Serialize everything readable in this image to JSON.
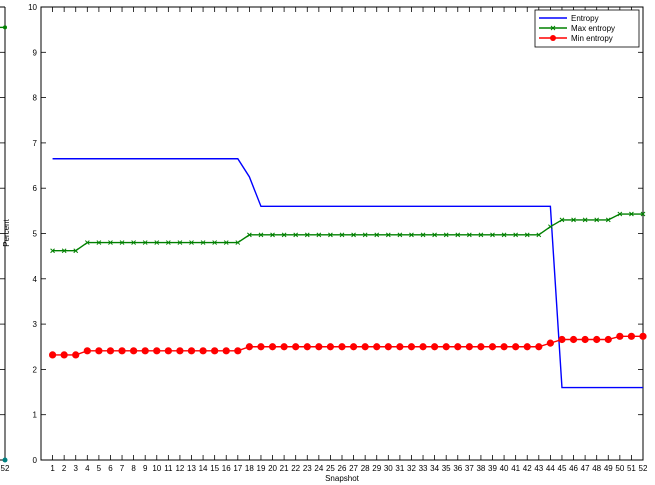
{
  "chart_data": [
    {
      "type": "line",
      "note_partial": "left edge of an adjacent chart, mostly cut off",
      "x_tick_labels": [
        "52"
      ],
      "series": [
        {
          "color": "#008000",
          "values": [
            9.55
          ]
        },
        {
          "color": "#008080",
          "values": [
            0.0
          ]
        }
      ]
    },
    {
      "type": "line",
      "title": "",
      "xlabel": "Snapshot",
      "ylabel": "Percent",
      "xlim": [
        0,
        52
      ],
      "ylim": [
        0,
        10
      ],
      "yticks": [
        0,
        1,
        2,
        3,
        4,
        5,
        6,
        7,
        8,
        9,
        10
      ],
      "x": [
        1,
        2,
        3,
        4,
        5,
        6,
        7,
        8,
        9,
        10,
        11,
        12,
        13,
        14,
        15,
        16,
        17,
        18,
        19,
        20,
        21,
        22,
        23,
        24,
        25,
        26,
        27,
        28,
        29,
        30,
        31,
        32,
        33,
        34,
        35,
        36,
        37,
        38,
        39,
        40,
        41,
        42,
        43,
        44,
        45,
        46,
        47,
        48,
        49,
        50,
        51,
        52
      ],
      "grid": false,
      "legend_position": "top-right",
      "series": [
        {
          "name": "Entropy",
          "color": "#0000ff",
          "marker": "none",
          "values": [
            6.65,
            6.65,
            6.65,
            6.65,
            6.65,
            6.65,
            6.65,
            6.65,
            6.65,
            6.65,
            6.65,
            6.65,
            6.65,
            6.65,
            6.65,
            6.65,
            6.65,
            6.25,
            5.6,
            5.6,
            5.6,
            5.6,
            5.6,
            5.6,
            5.6,
            5.6,
            5.6,
            5.6,
            5.6,
            5.6,
            5.6,
            5.6,
            5.6,
            5.6,
            5.6,
            5.6,
            5.6,
            5.6,
            5.6,
            5.6,
            5.6,
            5.6,
            5.6,
            5.6,
            1.6,
            1.6,
            1.6,
            1.6,
            1.6,
            1.6,
            1.6,
            1.6
          ]
        },
        {
          "name": "Max entropy",
          "color": "#008000",
          "marker": "x",
          "values": [
            4.62,
            4.62,
            4.62,
            4.8,
            4.8,
            4.8,
            4.8,
            4.8,
            4.8,
            4.8,
            4.8,
            4.8,
            4.8,
            4.8,
            4.8,
            4.8,
            4.8,
            4.97,
            4.97,
            4.97,
            4.97,
            4.97,
            4.97,
            4.97,
            4.97,
            4.97,
            4.97,
            4.97,
            4.97,
            4.97,
            4.97,
            4.97,
            4.97,
            4.97,
            4.97,
            4.97,
            4.97,
            4.97,
            4.97,
            4.97,
            4.97,
            4.97,
            4.97,
            5.15,
            5.3,
            5.3,
            5.3,
            5.3,
            5.3,
            5.43,
            5.43,
            5.43
          ]
        },
        {
          "name": "Min entropy",
          "color": "#ff0000",
          "marker": "o",
          "values": [
            2.32,
            2.32,
            2.32,
            2.41,
            2.41,
            2.41,
            2.41,
            2.41,
            2.41,
            2.41,
            2.41,
            2.41,
            2.41,
            2.41,
            2.41,
            2.41,
            2.41,
            2.5,
            2.5,
            2.5,
            2.5,
            2.5,
            2.5,
            2.5,
            2.5,
            2.5,
            2.5,
            2.5,
            2.5,
            2.5,
            2.5,
            2.5,
            2.5,
            2.5,
            2.5,
            2.5,
            2.5,
            2.5,
            2.5,
            2.5,
            2.5,
            2.5,
            2.5,
            2.58,
            2.66,
            2.66,
            2.66,
            2.66,
            2.66,
            2.73,
            2.73,
            2.73
          ]
        }
      ]
    }
  ]
}
